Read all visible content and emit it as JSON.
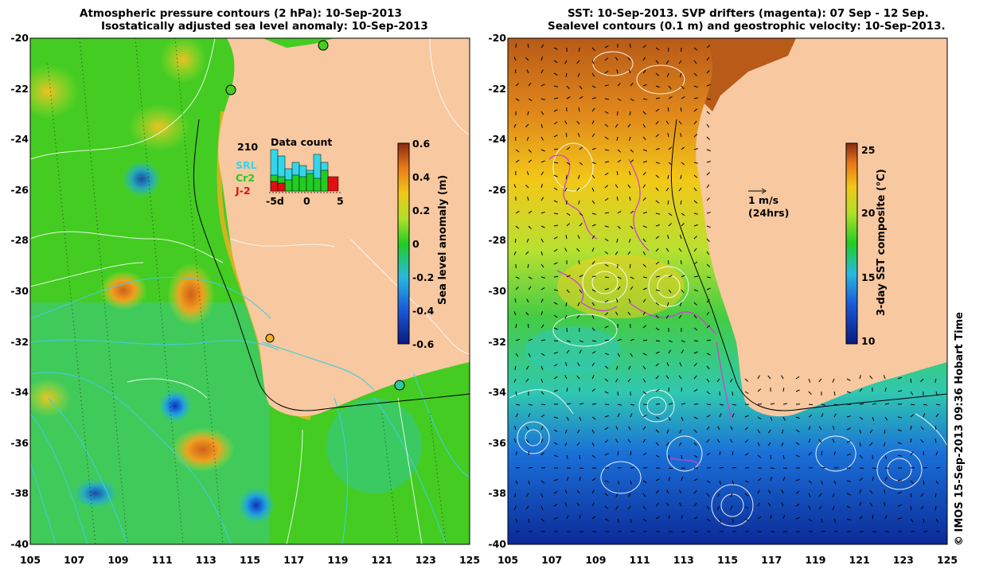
{
  "left_panel": {
    "title_line1": "Atmospheric pressure contours (2 hPa): 10-Sep-2013",
    "title_line2": "Isostatically adjusted sea level anomaly: 10-Sep-2013",
    "colorbar_label": "Sea level anomaly (m)",
    "colorbar_ticks": [
      "0.6",
      "0.4",
      "0.2",
      "0",
      "-0.2",
      "-0.4",
      "-0.6"
    ],
    "inset": {
      "count": "210",
      "title": "Data count",
      "legend": [
        "SRL",
        "Cr2",
        "J-2"
      ],
      "legend_colors": [
        "#33d6e8",
        "#22cc22",
        "#e01010"
      ],
      "x_ticks": [
        "-5d",
        "0",
        "5"
      ]
    }
  },
  "right_panel": {
    "title_line1": "SST: 10-Sep-2013. SVP drifters (magenta): 07 Sep - 12 Sep.",
    "title_line2": "Sealevel contours (0.1 m) and geostrophic velocity: 10-Sep-2013.",
    "colorbar_label": "3-day SST composite (°C)",
    "colorbar_ticks": [
      "25",
      "20",
      "15",
      "10"
    ],
    "scale_label_1": "1 m/s",
    "scale_label_2": "(24hrs)"
  },
  "y_ticks": [
    "-20",
    "-22",
    "-24",
    "-26",
    "-28",
    "-30",
    "-32",
    "-34",
    "-36",
    "-38",
    "-40"
  ],
  "x_ticks": [
    "105",
    "107",
    "109",
    "111",
    "113",
    "115",
    "117",
    "119",
    "121",
    "123",
    "125"
  ],
  "credit": "© IMOS 15-Sep-2013 09:36 Hobart Time",
  "colors": {
    "land": "#f8c8a0",
    "ocean_base": "#44cc22",
    "contour": "#ffffff",
    "pressure_contour": "#44ccdd",
    "drifters": "#cc44cc"
  }
}
